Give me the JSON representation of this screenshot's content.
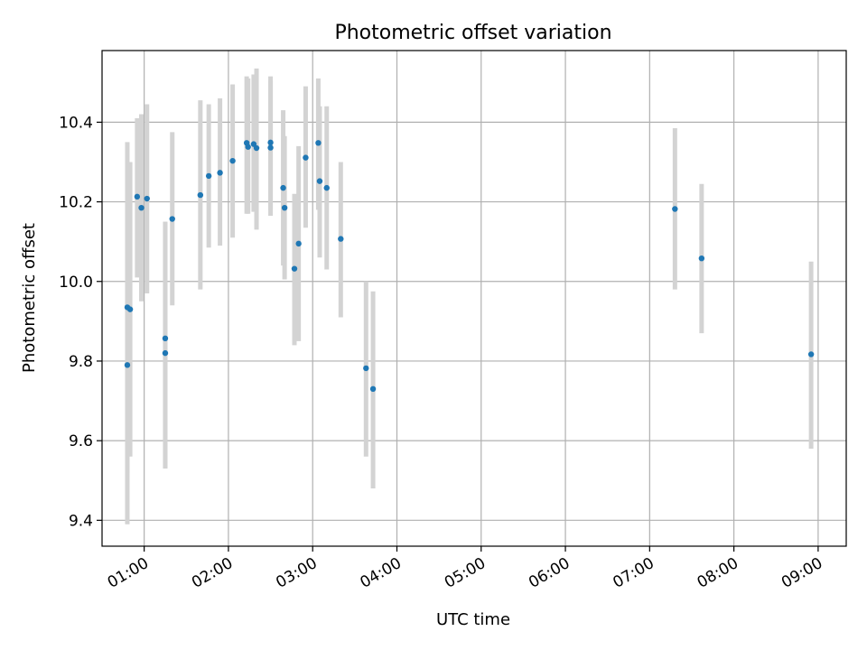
{
  "chart_data": {
    "type": "scatter",
    "title": "Photometric offset variation",
    "xlabel": "UTC time",
    "ylabel": "Photometric offset",
    "x_unit": "UTC time",
    "xlim": [
      "00:30",
      "09:20"
    ],
    "ylim": [
      9.335,
      10.58
    ],
    "x_ticks": [
      "01:00",
      "02:00",
      "03:00",
      "04:00",
      "05:00",
      "06:00",
      "07:00",
      "08:00",
      "09:00"
    ],
    "y_ticks": [
      9.4,
      9.6,
      9.8,
      10.0,
      10.2,
      10.4
    ],
    "y_tick_labels": [
      "9.4",
      "9.6",
      "9.8",
      "10.0",
      "10.2",
      "10.4"
    ],
    "grid": true,
    "colors": {
      "point": "#1f77b4",
      "errorbar": "#d3d3d3",
      "grid": "#b0b0b0"
    },
    "points": [
      {
        "x": "00:48",
        "y": 9.79,
        "lo": 9.39,
        "hi": 10.19
      },
      {
        "x": "00:48",
        "y": 9.935,
        "lo": 9.52,
        "hi": 10.35
      },
      {
        "x": "00:50",
        "y": 9.93,
        "lo": 9.56,
        "hi": 10.3
      },
      {
        "x": "00:55",
        "y": 10.213,
        "lo": 10.01,
        "hi": 10.41
      },
      {
        "x": "00:58",
        "y": 10.185,
        "lo": 9.95,
        "hi": 10.42
      },
      {
        "x": "01:02",
        "y": 10.208,
        "lo": 9.97,
        "hi": 10.445
      },
      {
        "x": "01:15",
        "y": 9.857,
        "lo": 9.53,
        "hi": 10.15
      },
      {
        "x": "01:15",
        "y": 9.82,
        "lo": 9.53,
        "hi": 10.15
      },
      {
        "x": "01:20",
        "y": 10.157,
        "lo": 9.94,
        "hi": 10.375
      },
      {
        "x": "01:40",
        "y": 10.217,
        "lo": 9.98,
        "hi": 10.455
      },
      {
        "x": "01:46",
        "y": 10.265,
        "lo": 10.085,
        "hi": 10.445
      },
      {
        "x": "01:54",
        "y": 10.273,
        "lo": 10.09,
        "hi": 10.46
      },
      {
        "x": "02:03",
        "y": 10.303,
        "lo": 10.11,
        "hi": 10.495
      },
      {
        "x": "02:13",
        "y": 10.348,
        "lo": 10.17,
        "hi": 10.515
      },
      {
        "x": "02:14",
        "y": 10.338,
        "lo": 10.17,
        "hi": 10.51
      },
      {
        "x": "02:18",
        "y": 10.345,
        "lo": 10.175,
        "hi": 10.52
      },
      {
        "x": "02:20",
        "y": 10.335,
        "lo": 10.13,
        "hi": 10.535
      },
      {
        "x": "02:30",
        "y": 10.349,
        "lo": 10.18,
        "hi": 10.515
      },
      {
        "x": "02:30",
        "y": 10.336,
        "lo": 10.165,
        "hi": 10.505
      },
      {
        "x": "02:39",
        "y": 10.235,
        "lo": 10.04,
        "hi": 10.43
      },
      {
        "x": "02:40",
        "y": 10.185,
        "lo": 10.005,
        "hi": 10.365
      },
      {
        "x": "02:47",
        "y": 10.032,
        "lo": 9.84,
        "hi": 10.22
      },
      {
        "x": "02:50",
        "y": 10.095,
        "lo": 9.85,
        "hi": 10.34
      },
      {
        "x": "02:55",
        "y": 10.311,
        "lo": 10.135,
        "hi": 10.49
      },
      {
        "x": "03:04",
        "y": 10.348,
        "lo": 10.18,
        "hi": 10.51
      },
      {
        "x": "03:05",
        "y": 10.252,
        "lo": 10.06,
        "hi": 10.44
      },
      {
        "x": "03:10",
        "y": 10.235,
        "lo": 10.03,
        "hi": 10.44
      },
      {
        "x": "03:20",
        "y": 10.107,
        "lo": 9.91,
        "hi": 10.3
      },
      {
        "x": "03:38",
        "y": 9.782,
        "lo": 9.56,
        "hi": 10.0
      },
      {
        "x": "03:43",
        "y": 9.73,
        "lo": 9.48,
        "hi": 9.975
      },
      {
        "x": "07:18",
        "y": 10.182,
        "lo": 9.98,
        "hi": 10.385
      },
      {
        "x": "07:37",
        "y": 10.058,
        "lo": 9.87,
        "hi": 10.245
      },
      {
        "x": "08:55",
        "y": 9.817,
        "lo": 9.58,
        "hi": 10.05
      }
    ]
  }
}
